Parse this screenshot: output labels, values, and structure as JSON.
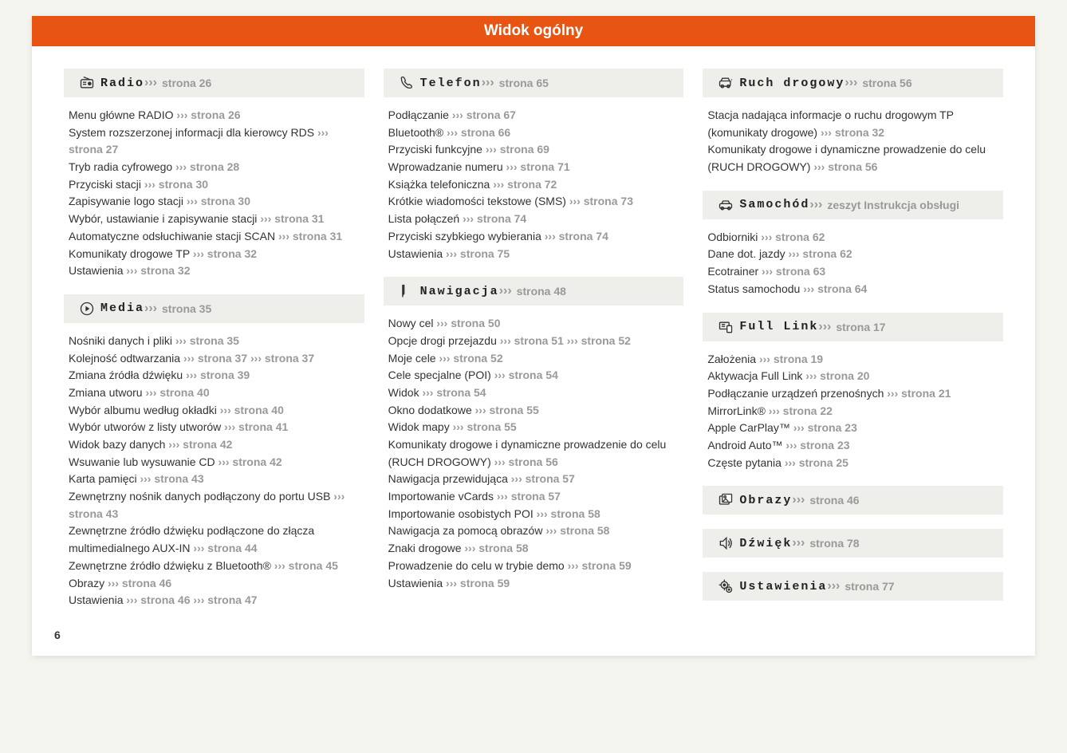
{
  "banner": "Widok ogólny",
  "pagenum": "6",
  "arrows": "›››",
  "columns": [
    [
      {
        "icon": "radio",
        "title": "Radio",
        "title_link": "strona 26",
        "items": [
          {
            "text": "Menu główne RADIO",
            "links": [
              "strona 26"
            ]
          },
          {
            "text": "System rozszerzonej informacji dla kierowcy RDS",
            "links": [
              "strona 27"
            ]
          },
          {
            "text": "Tryb radia cyfrowego",
            "links": [
              "strona 28"
            ]
          },
          {
            "text": "Przyciski stacji",
            "links": [
              "strona 30"
            ]
          },
          {
            "text": "Zapisywanie logo stacji",
            "links": [
              "strona 30"
            ]
          },
          {
            "text": "Wybór, ustawianie i zapisywanie stacji",
            "links": [
              "strona 31"
            ]
          },
          {
            "text": "Automatyczne odsłuchiwanie stacji SCAN",
            "links": [
              "strona 31"
            ]
          },
          {
            "text": "Komunikaty drogowe TP",
            "links": [
              "strona 32"
            ]
          },
          {
            "text": "Ustawienia",
            "links": [
              "strona 32"
            ]
          }
        ]
      },
      {
        "icon": "media",
        "title": "Media",
        "title_link": "strona 35",
        "items": [
          {
            "text": "Nośniki danych i pliki",
            "links": [
              "strona 35"
            ]
          },
          {
            "text": "Kolejność odtwarzania",
            "links": [
              "strona 37",
              "strona 37"
            ]
          },
          {
            "text": "Zmiana źródła dźwięku",
            "links": [
              "strona 39"
            ]
          },
          {
            "text": "Zmiana utworu",
            "links": [
              "strona 40"
            ]
          },
          {
            "text": "Wybór albumu według okładki",
            "links": [
              "strona 40"
            ]
          },
          {
            "text": "Wybór utworów z listy utworów",
            "links": [
              "strona 41"
            ]
          },
          {
            "text": "Widok bazy danych",
            "links": [
              "strona 42"
            ]
          },
          {
            "text": "Wsuwanie lub wysuwanie CD",
            "links": [
              "strona 42"
            ]
          },
          {
            "text": "Karta pamięci",
            "links": [
              "strona 43"
            ]
          },
          {
            "text": "Zewnętrzny nośnik danych podłączony do portu USB",
            "links": [
              "strona 43"
            ]
          },
          {
            "text": "Zewnętrzne źródło dźwięku podłączone do złącza multimedialnego AUX-IN",
            "links": [
              "strona 44"
            ]
          },
          {
            "text": "Zewnętrzne źródło dźwięku z Bluetooth®",
            "links": [
              "strona 45"
            ]
          },
          {
            "text": "Obrazy",
            "links": [
              "strona 46"
            ]
          },
          {
            "text": "Ustawienia",
            "links": [
              "strona 46",
              "strona 47"
            ]
          }
        ]
      }
    ],
    [
      {
        "icon": "phone",
        "title": "Telefon",
        "title_link": "strona 65",
        "items": [
          {
            "text": "Podłączanie",
            "links": [
              "strona 67"
            ]
          },
          {
            "text": "Bluetooth®",
            "links": [
              "strona 66"
            ]
          },
          {
            "text": "Przyciski funkcyjne",
            "links": [
              "strona 69"
            ]
          },
          {
            "text": "Wprowadzanie numeru",
            "links": [
              "strona 71"
            ]
          },
          {
            "text": "Książka telefoniczna",
            "links": [
              "strona 72"
            ]
          },
          {
            "text": "Krótkie wiadomości tekstowe (SMS)",
            "links": [
              "strona 73"
            ]
          },
          {
            "text": "Lista połączeń",
            "links": [
              "strona 74"
            ]
          },
          {
            "text": "Przyciski szybkiego wybierania",
            "links": [
              "strona 74"
            ]
          },
          {
            "text": "Ustawienia",
            "links": [
              "strona 75"
            ]
          }
        ]
      },
      {
        "icon": "nav",
        "title": "Nawigacja",
        "title_link": "strona 48",
        "items": [
          {
            "text": "Nowy cel",
            "links": [
              "strona 50"
            ]
          },
          {
            "text": "Opcje drogi przejazdu",
            "links": [
              "strona 51",
              "strona 52"
            ]
          },
          {
            "text": "Moje cele",
            "links": [
              "strona 52"
            ]
          },
          {
            "text": "Cele specjalne (POI)",
            "links": [
              "strona 54"
            ]
          },
          {
            "text": "Widok",
            "links": [
              "strona 54"
            ]
          },
          {
            "text": "Okno dodatkowe",
            "links": [
              "strona 55"
            ]
          },
          {
            "text": "Widok mapy",
            "links": [
              "strona 55"
            ]
          },
          {
            "text": "Komunikaty drogowe i dynamiczne prowadzenie do celu (RUCH DROGOWY)",
            "links": [
              "strona 56"
            ]
          },
          {
            "text": "Nawigacja przewidująca",
            "links": [
              "strona 57"
            ]
          },
          {
            "text": "Importowanie vCards",
            "links": [
              "strona 57"
            ]
          },
          {
            "text": "Importowanie osobistych POI",
            "links": [
              "strona 58"
            ]
          },
          {
            "text": "Nawigacja za pomocą obrazów",
            "links": [
              "strona 58"
            ]
          },
          {
            "text": "Znaki drogowe",
            "links": [
              "strona 58"
            ]
          },
          {
            "text": "Prowadzenie do celu w trybie demo",
            "links": [
              "strona 59"
            ]
          },
          {
            "text": "Ustawienia",
            "links": [
              "strona 59"
            ]
          }
        ]
      }
    ],
    [
      {
        "icon": "traffic",
        "title": "Ruch drogowy",
        "title_link": "strona 56",
        "items": [
          {
            "text": "Stacja nadająca informacje o ruchu drogowym TP (komunikaty drogowe)",
            "links": [
              "strona 32"
            ]
          },
          {
            "text": "Komunikaty drogowe i dynamiczne prowadzenie do celu (RUCH DROGOWY)",
            "links": [
              "strona 56"
            ]
          }
        ]
      },
      {
        "icon": "car",
        "title": "Samochód",
        "title_link": "zeszyt Instrukcja obsługi",
        "items": [
          {
            "text": "Odbiorniki",
            "links": [
              "strona 62"
            ]
          },
          {
            "text": "Dane dot. jazdy",
            "links": [
              "strona 62"
            ]
          },
          {
            "text": "Ecotrainer",
            "links": [
              "strona 63"
            ]
          },
          {
            "text": "Status samochodu",
            "links": [
              "strona 64"
            ]
          }
        ]
      },
      {
        "icon": "fulllink",
        "title": "Full Link",
        "title_link": "strona 17",
        "items": [
          {
            "text": "Założenia",
            "links": [
              "strona 19"
            ]
          },
          {
            "text": "Aktywacja Full Link",
            "links": [
              "strona 20"
            ]
          },
          {
            "text": "Podłączanie urządzeń przenośnych",
            "links": [
              "strona 21"
            ]
          },
          {
            "text": "MirrorLink®",
            "links": [
              "strona 22"
            ]
          },
          {
            "text": "Apple CarPlay™",
            "links": [
              "strona 23"
            ]
          },
          {
            "text": "Android Auto™",
            "links": [
              "strona 23"
            ]
          },
          {
            "text": "Częste pytania",
            "links": [
              "strona 25"
            ]
          }
        ]
      },
      {
        "icon": "images",
        "title": "Obrazy",
        "title_link": "strona 46",
        "slim": true,
        "items": []
      },
      {
        "icon": "sound",
        "title": "Dźwięk",
        "title_link": "strona 78",
        "slim": true,
        "items": []
      },
      {
        "icon": "settings",
        "title": "Ustawienia",
        "title_link": "strona 77",
        "slim": true,
        "items": []
      }
    ]
  ],
  "icons": {
    "radio": "<rect x='3' y='7' width='18' height='12' rx='2'/><line x1='7' y1='3' x2='17' y2='7'/><circle cx='16' cy='13' r='2' fill='#333'/><line x1='6' y1='11' x2='11' y2='11'/><line x1='6' y1='14' x2='11' y2='14'/>",
    "media": "<circle cx='12' cy='12' r='9'/><polygon points='10,8 16,12 10,16' fill='#333' stroke='none'/>",
    "phone": "<path d='M6 3 Q4 3 4 5 Q4 12 10 17 Q15 21 19 19 Q20 18 19 16 L16 14 Q15 14 14 15 Q11 13 9 10 Q10 9 10 8 L8 4 Q7 3 6 3 Z'/>",
    "nav": "<path d='M6 3 L6 18 L8 16 L8 3 Z' fill='#333' stroke='#333'/><line x1='6' y1='3' x2='6' y2='21'/>",
    "traffic": "<rect x='3' y='9' width='16' height='8' rx='2'/><path d='M5 9 L7 5 L16 5 L18 9'/><circle cx='7' cy='17' r='2'/><circle cx='16' cy='17' r='2'/><path d='M19 11 Q21 8 21 6' stroke-dasharray='1 1'/>",
    "car": "<rect x='3' y='10' width='18' height='7' rx='2'/><path d='M6 10 L8 6 L16 6 L18 10'/><circle cx='7' cy='17' r='2'/><circle cx='17' cy='17' r='2'/>",
    "fulllink": "<rect x='3' y='5' width='14' height='10' rx='1'/><rect x='14' y='10' width='7' height='10' rx='1' fill='#fff'/><line x1='6' y1='8' x2='11' y2='8'/><line x1='6' y1='11' x2='11' y2='11'/>",
    "images": "<rect x='3' y='6' width='14' height='12' rx='1'/><rect x='7' y='3' width='14' height='12' rx='1' fill='#fff'/><circle cx='11' cy='7' r='1.5'/><path d='M8 14 L12 10 L16 14'/>",
    "sound": "<path d='M4 9 L8 9 L13 4 L13 20 L8 15 L4 15 Z'/><path d='M16 8 Q19 12 16 16'/><path d='M18 5 Q23 12 18 19'/>",
    "settings": "<circle cx='10' cy='10' r='5'/><circle cx='10' cy='10' r='1.5' fill='#333'/><line x1='10' y1='2' x2='10' y2='5'/><line x1='10' y1='15' x2='10' y2='18'/><line x1='2' y1='10' x2='5' y2='10'/><line x1='15' y1='10' x2='18' y2='10'/><circle cx='17' cy='17' r='4'/><circle cx='17' cy='17' r='1' fill='#333'/>"
  }
}
